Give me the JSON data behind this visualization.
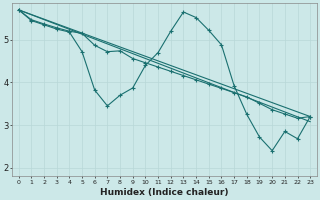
{
  "xlabel": "Humidex (Indice chaleur)",
  "bg_color": "#cce8e8",
  "line_color": "#1a7070",
  "grid_color": "#b8d8d8",
  "xlim": [
    -0.5,
    23.5
  ],
  "ylim": [
    1.8,
    5.85
  ],
  "yticks": [
    2,
    3,
    4,
    5
  ],
  "xticks": [
    0,
    1,
    2,
    3,
    4,
    5,
    6,
    7,
    8,
    9,
    10,
    11,
    12,
    13,
    14,
    15,
    16,
    17,
    18,
    19,
    20,
    21,
    22,
    23
  ],
  "series1_x": [
    0,
    1,
    2,
    3,
    4,
    5,
    6,
    7,
    8,
    9,
    10,
    11,
    12,
    13,
    14,
    15,
    16,
    17,
    18,
    19,
    20,
    21,
    22,
    23
  ],
  "series1_y": [
    5.7,
    5.45,
    5.35,
    5.25,
    5.18,
    4.72,
    3.82,
    3.45,
    3.7,
    3.87,
    4.4,
    4.7,
    5.2,
    5.65,
    5.52,
    5.22,
    4.88,
    3.92,
    3.25,
    2.72,
    2.4,
    2.85,
    2.68,
    3.2
  ],
  "series2_x": [
    0,
    1,
    2,
    3,
    4,
    5,
    6,
    7,
    8,
    9,
    10,
    11,
    12,
    13,
    14,
    15,
    16,
    17,
    18,
    19,
    20,
    21,
    22,
    23
  ],
  "series2_y": [
    5.7,
    5.47,
    5.37,
    5.28,
    5.2,
    5.15,
    4.87,
    4.72,
    4.74,
    4.56,
    4.46,
    4.36,
    4.26,
    4.16,
    4.06,
    3.96,
    3.86,
    3.76,
    3.66,
    3.51,
    3.36,
    3.26,
    3.16,
    3.2
  ],
  "series3_x": [
    0,
    23
  ],
  "series3_y": [
    5.7,
    3.2
  ],
  "series4_x": [
    0,
    23
  ],
  "series4_y": [
    5.7,
    3.08
  ]
}
